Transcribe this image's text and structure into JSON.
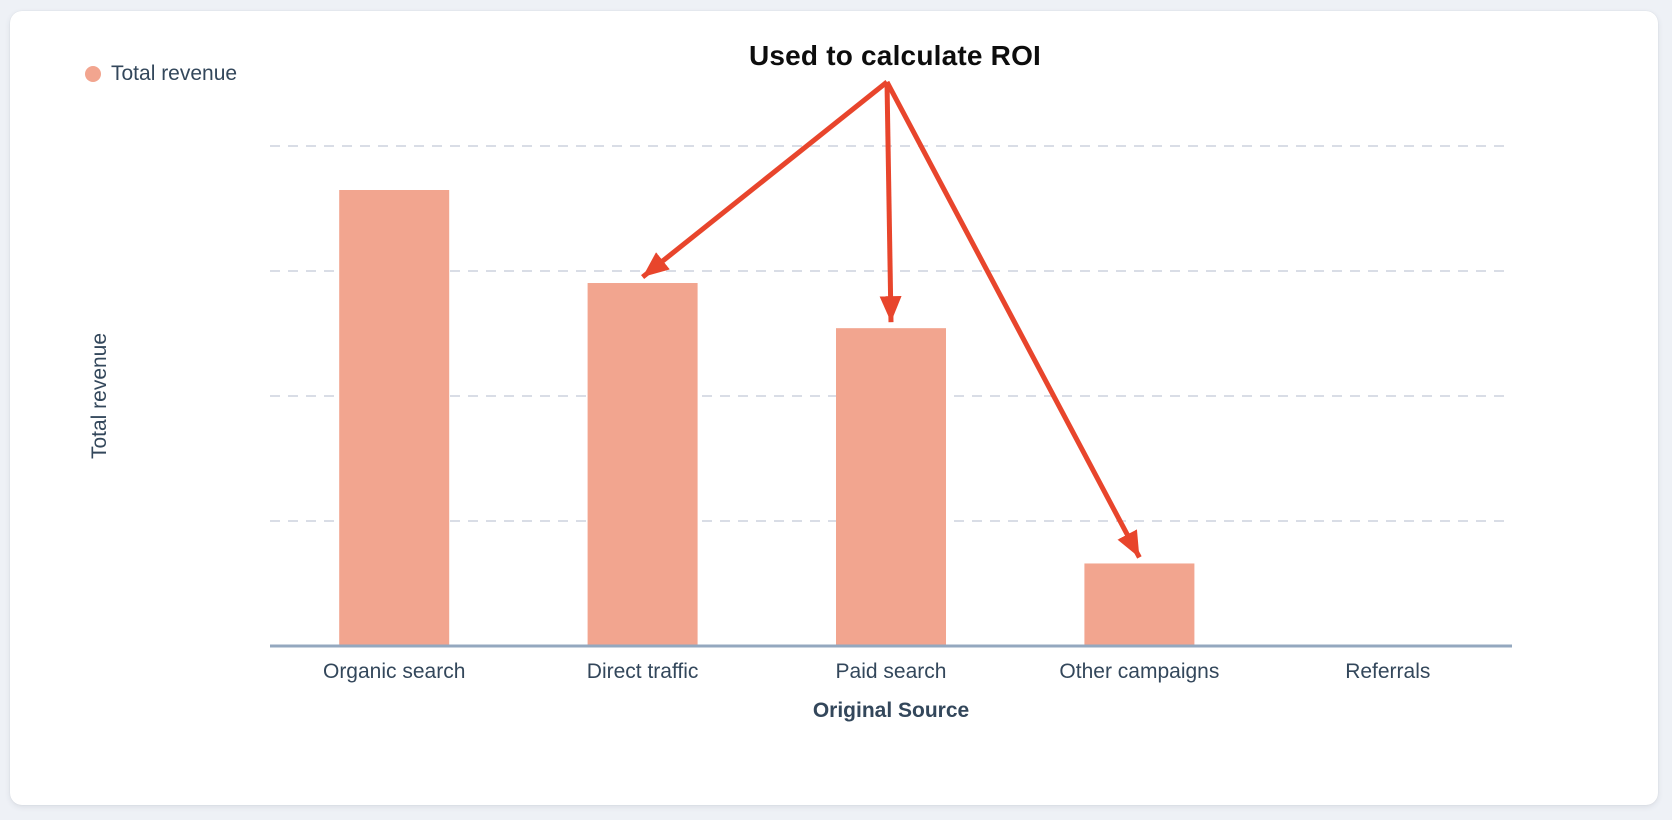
{
  "page": {
    "background_color": "#eef1f6",
    "card_background_color": "#ffffff"
  },
  "legend": {
    "position": "top-left",
    "items": [
      {
        "label": "Total revenue",
        "color": "#f2a58f"
      }
    ]
  },
  "annotation": {
    "title": "Used to calculate ROI",
    "arrow_color": "#e8452c",
    "target_categories": [
      "Direct traffic",
      "Paid search",
      "Other campaigns"
    ]
  },
  "chart_data": {
    "type": "bar",
    "title": "",
    "categories": [
      "Organic search",
      "Direct traffic",
      "Paid search",
      "Other campaigns",
      "Referrals"
    ],
    "series": [
      {
        "name": "Total revenue",
        "values_pct_of_max": [
          100,
          79.6,
          69.7,
          18.1,
          0
        ]
      }
    ],
    "xlabel": "Original Source",
    "ylabel": "Total revenue",
    "y_ticks": [],
    "y_tick_labels_visible": false,
    "grid": "horizontal-dashed",
    "gridline_count": 4,
    "legend_position": "top-left",
    "bar_color": "#f2a58f",
    "axis_line_color": "#94a8bf",
    "gridline_color": "#d9dde6",
    "label_color": "#33475b"
  }
}
